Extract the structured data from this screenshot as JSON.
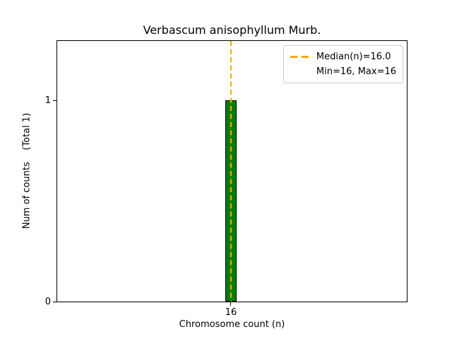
{
  "chart_data": {
    "type": "bar",
    "title": "Verbascum anisophyllum Murb.",
    "xlabel": "Chromosome count (n)",
    "ylabel": "Num of counts    (Total 1)",
    "categories": [
      16
    ],
    "values": [
      1
    ],
    "total_counts": 1,
    "x_tick_labels": [
      "16"
    ],
    "y_tick_labels": [
      "0",
      "1"
    ],
    "ylim": [
      0,
      1.3
    ],
    "grid": false,
    "bar_color": "#008000",
    "bar_edge_color": "#000000",
    "median_line": {
      "x": 16.0,
      "color": "#ffa500",
      "style": "dashed",
      "label": "Median(n)=16.0"
    },
    "stats": {
      "median": 16.0,
      "min": 16,
      "max": 16
    },
    "legend": {
      "position": "upper right",
      "entries": [
        {
          "label": "Median(n)=16.0",
          "sample": "orange-dashed-line"
        },
        {
          "label": "Min=16, Max=16",
          "sample": "none"
        }
      ]
    }
  }
}
